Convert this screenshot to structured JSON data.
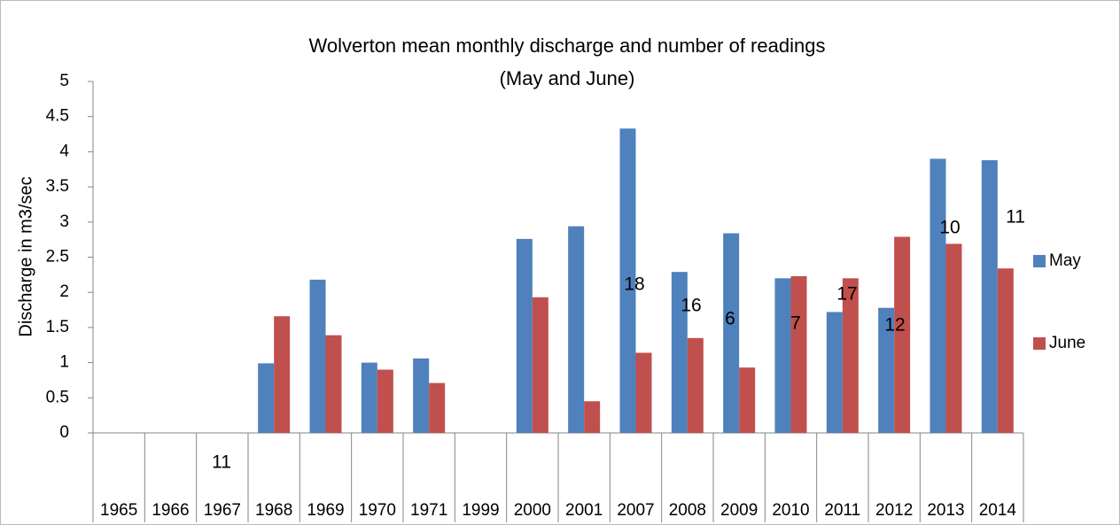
{
  "chart_data": {
    "type": "bar",
    "title": "Wolverton mean monthly discharge and number of readings",
    "subtitle": "(May and June)",
    "y_label": "Discharge in m3/sec",
    "categories": [
      "1965",
      "1966",
      "1967",
      "1968",
      "1969",
      "1970",
      "1971",
      "1999",
      "2000",
      "2001",
      "2007",
      "2008",
      "2009",
      "2010",
      "2011",
      "2012",
      "2013",
      "2014"
    ],
    "series": [
      {
        "name": "May",
        "color": "#4f81bd",
        "values": [
          null,
          null,
          null,
          0.99,
          2.18,
          1.0,
          1.06,
          null,
          2.76,
          2.94,
          4.33,
          2.29,
          2.84,
          2.2,
          1.72,
          1.78,
          3.9,
          3.88
        ]
      },
      {
        "name": "June",
        "color": "#c0504d",
        "values": [
          null,
          null,
          null,
          1.66,
          1.39,
          0.9,
          0.71,
          null,
          1.93,
          0.45,
          1.14,
          1.35,
          0.93,
          2.23,
          2.2,
          2.79,
          2.69,
          2.34
        ]
      }
    ],
    "annotations": [
      "11",
      "18",
      "16",
      "6",
      "7",
      "17",
      "12",
      "10",
      "11"
    ],
    "ylim": [
      0,
      5
    ],
    "yticks": [
      0,
      0.5,
      1,
      1.5,
      2,
      2.5,
      3,
      3.5,
      4,
      4.5,
      5
    ],
    "grid": false,
    "legend": "right"
  }
}
